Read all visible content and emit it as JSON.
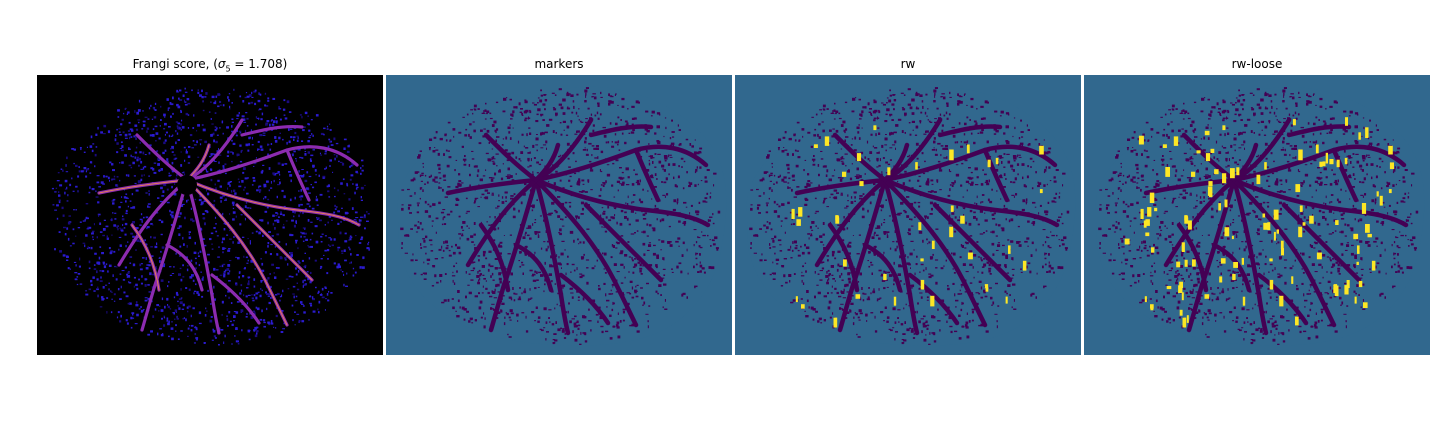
{
  "figure": {
    "panels": [
      {
        "id": "frangi",
        "title_prefix": "Frangi score, (",
        "title_sigma": "σ",
        "title_sub": "5",
        "title_suffix": " = 1.708)",
        "background": "#000000",
        "colormap": "plasma"
      },
      {
        "id": "markers",
        "title": "markers",
        "background": "#31688e",
        "colormap": "viridis"
      },
      {
        "id": "rw",
        "title": "rw",
        "background": "#31688e",
        "colormap": "viridis"
      },
      {
        "id": "rw-loose",
        "title": "rw-loose",
        "background": "#31688e",
        "colormap": "viridis"
      }
    ],
    "colors": {
      "vessel_dark": "#440154",
      "teal": "#31688e",
      "yellow": "#fde725",
      "frangi_blue": "#2b1bd0",
      "frangi_purple": "#8c2bb0",
      "frangi_orange": "#f89540"
    }
  }
}
